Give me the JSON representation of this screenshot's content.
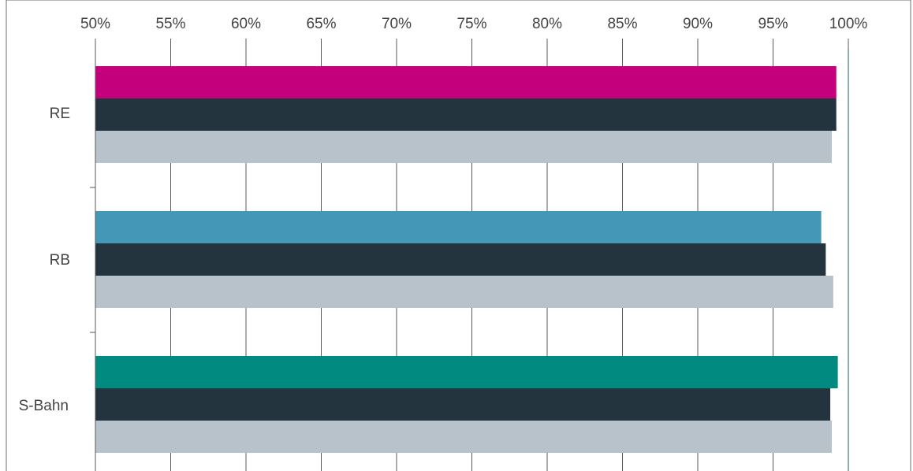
{
  "chart_data": {
    "type": "bar",
    "orientation": "horizontal",
    "x_axis_position": "top",
    "xlim": [
      50,
      100
    ],
    "x_ticks": [
      50,
      55,
      60,
      65,
      70,
      75,
      80,
      85,
      90,
      95,
      100
    ],
    "x_tick_labels": [
      "50%",
      "55%",
      "60%",
      "65%",
      "70%",
      "75%",
      "80%",
      "85%",
      "90%",
      "95%",
      "100%"
    ],
    "categories": [
      "RE",
      "RB",
      "S-Bahn"
    ],
    "grid": true,
    "legend": "none",
    "bars": [
      {
        "category": "RE",
        "values": [
          99.2,
          99.2,
          98.9
        ],
        "colors": [
          "#C5007C",
          "#23343F",
          "#B8C2CA"
        ]
      },
      {
        "category": "RB",
        "values": [
          98.2,
          98.5,
          99.0
        ],
        "colors": [
          "#4497B6",
          "#23343F",
          "#B8C2CA"
        ]
      },
      {
        "category": "S-Bahn",
        "values": [
          99.3,
          98.8,
          98.9
        ],
        "colors": [
          "#008A80",
          "#23343F",
          "#B8C2CA"
        ]
      }
    ]
  }
}
